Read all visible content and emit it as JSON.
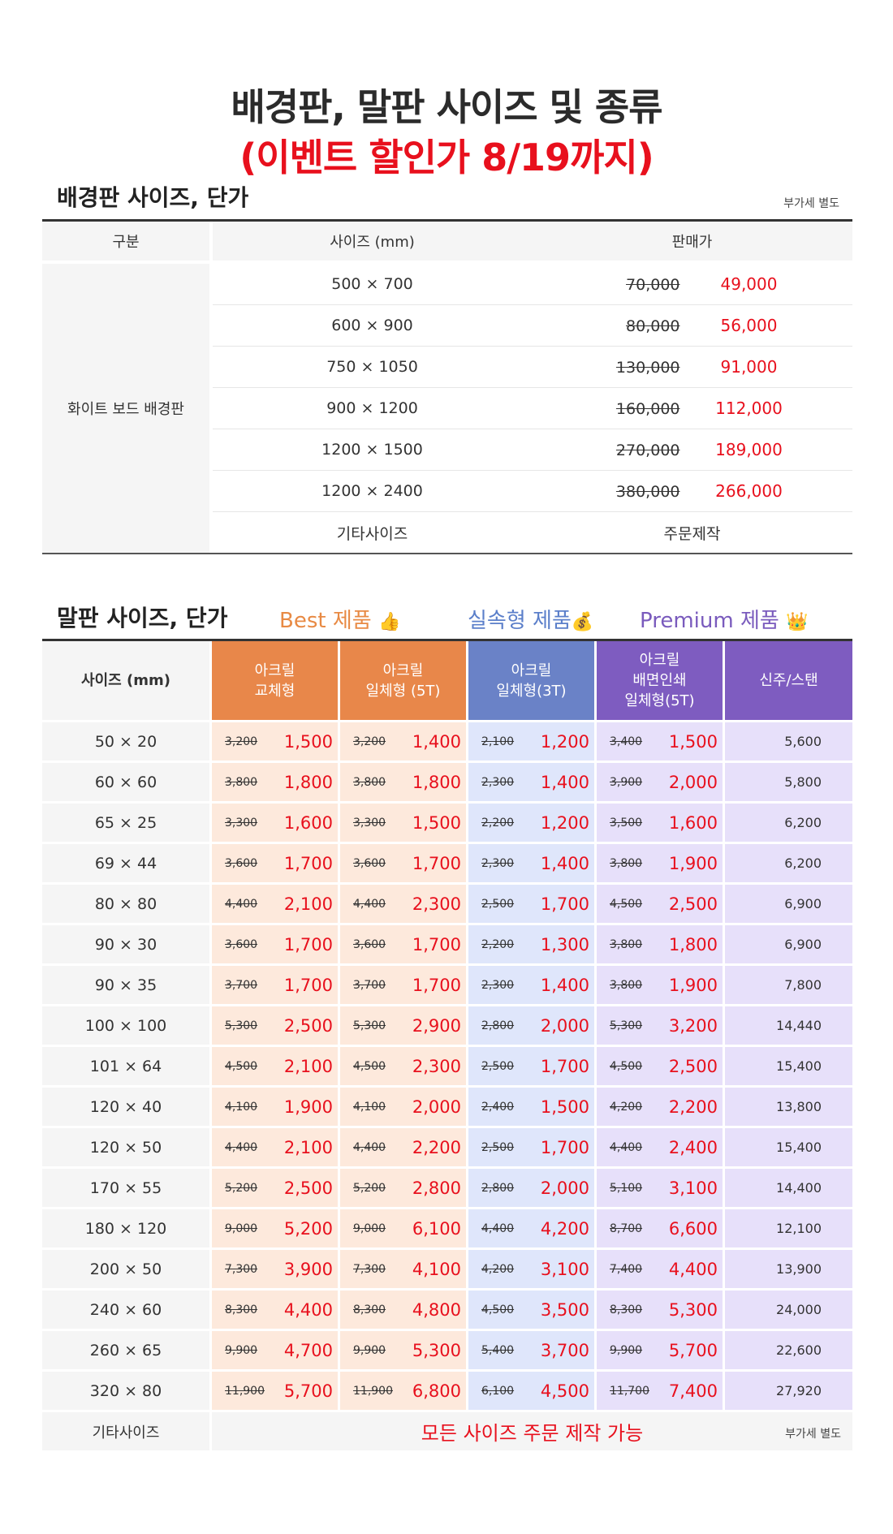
{
  "title": {
    "line1": "배경판, 말판 사이즈 및 종류",
    "line2": "(이벤트 할인가 8/19까지)"
  },
  "background_board": {
    "heading": "배경판 사이즈, 단가",
    "vat_note": "부가세 별도",
    "columns": [
      "구분",
      "사이즈 (mm)",
      "판매가"
    ],
    "category": "화이트 보드 배경판",
    "rows": [
      {
        "size": "500 × 700",
        "original": "70,000",
        "sale": "49,000"
      },
      {
        "size": "600 × 900",
        "original": "80,000",
        "sale": "56,000"
      },
      {
        "size": "750 × 1050",
        "original": "130,000",
        "sale": "91,000"
      },
      {
        "size": "900 × 1200",
        "original": "160,000",
        "sale": "112,000"
      },
      {
        "size": "1200 × 1500",
        "original": "270,000",
        "sale": "189,000"
      },
      {
        "size": "1200 × 2400",
        "original": "380,000",
        "sale": "266,000"
      }
    ],
    "other_size": "기타사이즈",
    "other_price": "주문제작"
  },
  "label_board": {
    "heading": "말판 사이즈, 단가",
    "legend": {
      "best": "Best 제품",
      "best_emoji": "👍",
      "economy": "실속형 제품",
      "economy_emoji": "💰",
      "premium": "Premium 제품",
      "premium_emoji": "👑"
    },
    "columns": [
      [
        "사이즈 (mm)"
      ],
      [
        "아크릴",
        "교체형"
      ],
      [
        "아크릴",
        "일체형 (5T)"
      ],
      [
        "아크릴",
        "일체형(3T)"
      ],
      [
        "아크릴",
        "배면인쇄",
        "일체형(5T)"
      ],
      [
        "신주/스탠"
      ]
    ],
    "rows": [
      {
        "size": "50 × 20",
        "a": [
          "3,200",
          "1,500"
        ],
        "b": [
          "3,200",
          "1,400"
        ],
        "c": [
          "2,100",
          "1,200"
        ],
        "d": [
          "3,400",
          "1,500"
        ],
        "e": "5,600"
      },
      {
        "size": "60 × 60",
        "a": [
          "3,800",
          "1,800"
        ],
        "b": [
          "3,800",
          "1,800"
        ],
        "c": [
          "2,300",
          "1,400"
        ],
        "d": [
          "3,900",
          "2,000"
        ],
        "e": "5,800"
      },
      {
        "size": "65 × 25",
        "a": [
          "3,300",
          "1,600"
        ],
        "b": [
          "3,300",
          "1,500"
        ],
        "c": [
          "2,200",
          "1,200"
        ],
        "d": [
          "3,500",
          "1,600"
        ],
        "e": "6,200"
      },
      {
        "size": "69 × 44",
        "a": [
          "3,600",
          "1,700"
        ],
        "b": [
          "3,600",
          "1,700"
        ],
        "c": [
          "2,300",
          "1,400"
        ],
        "d": [
          "3,800",
          "1,900"
        ],
        "e": "6,200"
      },
      {
        "size": "80 × 80",
        "a": [
          "4,400",
          "2,100"
        ],
        "b": [
          "4,400",
          "2,300"
        ],
        "c": [
          "2,500",
          "1,700"
        ],
        "d": [
          "4,500",
          "2,500"
        ],
        "e": "6,900"
      },
      {
        "size": "90 × 30",
        "a": [
          "3,600",
          "1,700"
        ],
        "b": [
          "3,600",
          "1,700"
        ],
        "c": [
          "2,200",
          "1,300"
        ],
        "d": [
          "3,800",
          "1,800"
        ],
        "e": "6,900"
      },
      {
        "size": "90 × 35",
        "a": [
          "3,700",
          "1,700"
        ],
        "b": [
          "3,700",
          "1,700"
        ],
        "c": [
          "2,300",
          "1,400"
        ],
        "d": [
          "3,800",
          "1,900"
        ],
        "e": "7,800"
      },
      {
        "size": "100 × 100",
        "a": [
          "5,300",
          "2,500"
        ],
        "b": [
          "5,300",
          "2,900"
        ],
        "c": [
          "2,800",
          "2,000"
        ],
        "d": [
          "5,300",
          "3,200"
        ],
        "e": "14,440"
      },
      {
        "size": "101 × 64",
        "a": [
          "4,500",
          "2,100"
        ],
        "b": [
          "4,500",
          "2,300"
        ],
        "c": [
          "2,500",
          "1,700"
        ],
        "d": [
          "4,500",
          "2,500"
        ],
        "e": "15,400"
      },
      {
        "size": "120 × 40",
        "a": [
          "4,100",
          "1,900"
        ],
        "b": [
          "4,100",
          "2,000"
        ],
        "c": [
          "2,400",
          "1,500"
        ],
        "d": [
          "4,200",
          "2,200"
        ],
        "e": "13,800"
      },
      {
        "size": "120 × 50",
        "a": [
          "4,400",
          "2,100"
        ],
        "b": [
          "4,400",
          "2,200"
        ],
        "c": [
          "2,500",
          "1,700"
        ],
        "d": [
          "4,400",
          "2,400"
        ],
        "e": "15,400"
      },
      {
        "size": "170 × 55",
        "a": [
          "5,200",
          "2,500"
        ],
        "b": [
          "5,200",
          "2,800"
        ],
        "c": [
          "2,800",
          "2,000"
        ],
        "d": [
          "5,100",
          "3,100"
        ],
        "e": "14,400"
      },
      {
        "size": "180 × 120",
        "a": [
          "9,000",
          "5,200"
        ],
        "b": [
          "9,000",
          "6,100"
        ],
        "c": [
          "4,400",
          "4,200"
        ],
        "d": [
          "8,700",
          "6,600"
        ],
        "e": "12,100"
      },
      {
        "size": "200 × 50",
        "a": [
          "7,300",
          "3,900"
        ],
        "b": [
          "7,300",
          "4,100"
        ],
        "c": [
          "4,200",
          "3,100"
        ],
        "d": [
          "7,400",
          "4,400"
        ],
        "e": "13,900"
      },
      {
        "size": "240 × 60",
        "a": [
          "8,300",
          "4,400"
        ],
        "b": [
          "8,300",
          "4,800"
        ],
        "c": [
          "4,500",
          "3,500"
        ],
        "d": [
          "8,300",
          "5,300"
        ],
        "e": "24,000"
      },
      {
        "size": "260 × 65",
        "a": [
          "9,900",
          "4,700"
        ],
        "b": [
          "9,900",
          "5,300"
        ],
        "c": [
          "5,400",
          "3,700"
        ],
        "d": [
          "9,900",
          "5,700"
        ],
        "e": "22,600"
      },
      {
        "size": "320 × 80",
        "a": [
          "11,900",
          "5,700"
        ],
        "b": [
          "11,900",
          "6,800"
        ],
        "c": [
          "6,100",
          "4,500"
        ],
        "d": [
          "11,700",
          "7,400"
        ],
        "e": "27,920"
      }
    ],
    "other_size": "기타사이즈",
    "other_message": "모든 사이즈 주문 제작 가능",
    "vat_note": "부가세 별도"
  }
}
